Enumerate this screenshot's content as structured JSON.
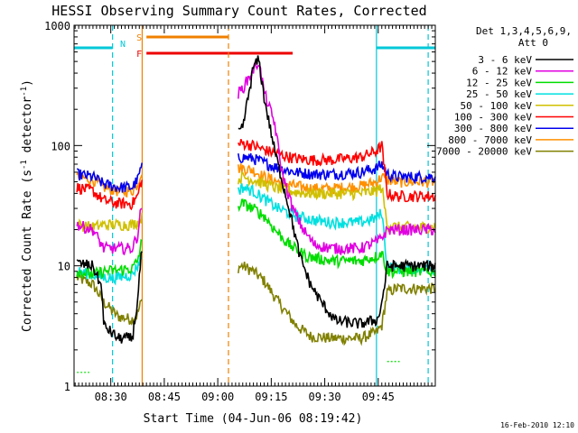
{
  "chart_data": {
    "type": "line",
    "title": "HESSI Observing Summary Count Rates, Corrected",
    "xlabel": "Start Time (04-Jun-06 08:19:42)",
    "ylabel_main": "Corrected Count Rate (s",
    "ylabel_sup1": "-1",
    "ylabel_mid": " detector",
    "ylabel_sup2": "-1",
    "ylabel_end": ")",
    "x_ticks": [
      "08:30",
      "08:45",
      "09:00",
      "09:15",
      "09:30",
      "09:45"
    ],
    "x_tick_minutes": [
      510,
      525,
      540,
      555,
      570,
      585
    ],
    "xlim_minutes": [
      499.7,
      601
    ],
    "y_scale": "log",
    "ylim": [
      1,
      1000
    ],
    "y_ticks": [
      "1",
      "10",
      "100",
      "1000"
    ],
    "y_tick_values": [
      1,
      10,
      100,
      1000
    ],
    "timestamp": "16-Feb-2010 12:10",
    "legend_header": [
      "Det 1,3,4,5,6,9,",
      "Att 0"
    ],
    "flags": {
      "N": {
        "label": "N",
        "color": "#00c8d8"
      },
      "S": {
        "label": "S",
        "color": "#f08000",
        "start": 520,
        "end": 543
      },
      "F": {
        "label": "F",
        "color": "#ee0000",
        "start": 520,
        "end": 561
      }
    },
    "night_segments": [
      {
        "start": 499.7,
        "end": 510.5
      },
      {
        "start": 584.5,
        "end": 601
      }
    ],
    "night_level": 650,
    "vlines": [
      {
        "t": 510.5,
        "color": "#00c8d8",
        "style": "dashed"
      },
      {
        "t": 518.8,
        "color": "#f08000",
        "style": "solid"
      },
      {
        "t": 543.0,
        "color": "#f08000",
        "style": "dashed"
      },
      {
        "t": 584.5,
        "color": "#00c8d8",
        "style": "solid"
      },
      {
        "t": 599.0,
        "color": "#00c8d8",
        "style": "dashed"
      }
    ],
    "gap": [
      518.8,
      546.0
    ],
    "series": [
      {
        "name": "3 - 6 keV",
        "color": "#000000",
        "points": [
          [
            500.5,
            10.5
          ],
          [
            505,
            10
          ],
          [
            507.5,
            6.5
          ],
          [
            508,
            3.2
          ],
          [
            512,
            2.5
          ],
          [
            516,
            2.5
          ],
          [
            517.5,
            5
          ],
          [
            518.5,
            12
          ],
          [
            547,
            140
          ],
          [
            550,
            450
          ],
          [
            551.5,
            520
          ],
          [
            553,
            250
          ],
          [
            556,
            90
          ],
          [
            560,
            30
          ],
          [
            563,
            12
          ],
          [
            566,
            7
          ],
          [
            569,
            5
          ],
          [
            573,
            3.5
          ],
          [
            580,
            3.3
          ],
          [
            585,
            3.6
          ],
          [
            586.5,
            6
          ],
          [
            587.5,
            10
          ],
          [
            590,
            10
          ],
          [
            595,
            10
          ],
          [
            601,
            10
          ]
        ]
      },
      {
        "name": "6 - 12 keV",
        "color": "#e000e0",
        "points": [
          [
            500.5,
            22
          ],
          [
            505,
            20
          ],
          [
            508,
            14
          ],
          [
            512,
            14
          ],
          [
            516,
            14
          ],
          [
            517.5,
            18
          ],
          [
            518.5,
            30
          ],
          [
            547,
            300
          ],
          [
            550,
            430
          ],
          [
            551.5,
            500
          ],
          [
            553,
            280
          ],
          [
            556,
            150
          ],
          [
            558,
            60
          ],
          [
            561,
            30
          ],
          [
            564,
            20
          ],
          [
            567,
            15
          ],
          [
            572,
            14
          ],
          [
            580,
            14
          ],
          [
            585,
            16
          ],
          [
            586.5,
            18
          ],
          [
            587.5,
            20
          ],
          [
            590,
            20
          ],
          [
            595,
            20
          ],
          [
            601,
            20
          ]
        ]
      },
      {
        "name": "12 - 25 keV",
        "color": "#00dd00",
        "points": [
          [
            500.5,
            9
          ],
          [
            505,
            8.5
          ],
          [
            508,
            9
          ],
          [
            512,
            9.2
          ],
          [
            516,
            9.5
          ],
          [
            517.5,
            11
          ],
          [
            518.5,
            15
          ],
          [
            547,
            33
          ],
          [
            550,
            30
          ],
          [
            553,
            26
          ],
          [
            556,
            20
          ],
          [
            560,
            15
          ],
          [
            565,
            12
          ],
          [
            572,
            11
          ],
          [
            580,
            11
          ],
          [
            584.5,
            12
          ],
          [
            586,
            13
          ],
          [
            587.5,
            9
          ],
          [
            590,
            9
          ],
          [
            595,
            9
          ],
          [
            601,
            9
          ]
        ]
      },
      {
        "name": "25 - 50 keV",
        "color": "#00e0e0",
        "points": [
          [
            500.5,
            9
          ],
          [
            505,
            8.5
          ],
          [
            508,
            8
          ],
          [
            512,
            8
          ],
          [
            516,
            8.5
          ],
          [
            517.5,
            10
          ],
          [
            518.5,
            12
          ],
          [
            547,
            45
          ],
          [
            550,
            42
          ],
          [
            553,
            36
          ],
          [
            557,
            30
          ],
          [
            562,
            26
          ],
          [
            567,
            24
          ],
          [
            572,
            23
          ],
          [
            580,
            23
          ],
          [
            584.5,
            25
          ],
          [
            586,
            28
          ],
          [
            587.5,
            10
          ],
          [
            590,
            9.5
          ],
          [
            595,
            9.5
          ],
          [
            601,
            9.5
          ]
        ]
      },
      {
        "name": "50 - 100 keV",
        "color": "#d0c000",
        "points": [
          [
            500.5,
            22
          ],
          [
            505,
            21
          ],
          [
            508,
            22
          ],
          [
            512,
            22
          ],
          [
            516,
            22
          ],
          [
            517.5,
            23
          ],
          [
            518.5,
            25
          ],
          [
            547,
            55
          ],
          [
            550,
            52
          ],
          [
            553,
            48
          ],
          [
            557,
            44
          ],
          [
            562,
            41
          ],
          [
            567,
            40
          ],
          [
            572,
            40
          ],
          [
            580,
            40
          ],
          [
            584.5,
            42
          ],
          [
            586,
            45
          ],
          [
            587.5,
            22
          ],
          [
            590,
            21
          ],
          [
            595,
            21
          ],
          [
            601,
            21
          ]
        ]
      },
      {
        "name": "100 - 300 keV",
        "color": "#ff0000",
        "points": [
          [
            500.5,
            45
          ],
          [
            505,
            42
          ],
          [
            508,
            35
          ],
          [
            512,
            33
          ],
          [
            516,
            33
          ],
          [
            517.5,
            38
          ],
          [
            518.5,
            50
          ],
          [
            547,
            105
          ],
          [
            550,
            100
          ],
          [
            553,
            92
          ],
          [
            557,
            85
          ],
          [
            562,
            78
          ],
          [
            567,
            76
          ],
          [
            572,
            76
          ],
          [
            580,
            80
          ],
          [
            584.5,
            90
          ],
          [
            586,
            100
          ],
          [
            587.5,
            40
          ],
          [
            590,
            38
          ],
          [
            595,
            38
          ],
          [
            601,
            38
          ]
        ]
      },
      {
        "name": "300 - 800 keV",
        "color": "#0000ee",
        "points": [
          [
            500.5,
            58
          ],
          [
            505,
            55
          ],
          [
            508,
            48
          ],
          [
            512,
            45
          ],
          [
            516,
            45
          ],
          [
            517.5,
            52
          ],
          [
            518.5,
            65
          ],
          [
            547,
            80
          ],
          [
            550,
            78
          ],
          [
            553,
            72
          ],
          [
            557,
            65
          ],
          [
            562,
            60
          ],
          [
            567,
            58
          ],
          [
            572,
            58
          ],
          [
            580,
            60
          ],
          [
            584.5,
            65
          ],
          [
            586,
            70
          ],
          [
            587.5,
            58
          ],
          [
            590,
            55
          ],
          [
            595,
            55
          ],
          [
            601,
            55
          ]
        ]
      },
      {
        "name": "800 - 7000 keV",
        "color": "#ff9000",
        "points": [
          [
            500.5,
            55
          ],
          [
            505,
            52
          ],
          [
            508,
            45
          ],
          [
            512,
            42
          ],
          [
            516,
            42
          ],
          [
            517.5,
            48
          ],
          [
            518.5,
            60
          ],
          [
            547,
            65
          ],
          [
            550,
            62
          ],
          [
            553,
            55
          ],
          [
            557,
            50
          ],
          [
            562,
            46
          ],
          [
            567,
            44
          ],
          [
            572,
            44
          ],
          [
            580,
            46
          ],
          [
            584.5,
            50
          ],
          [
            586,
            55
          ],
          [
            587.5,
            52
          ],
          [
            590,
            50
          ],
          [
            595,
            50
          ],
          [
            601,
            50
          ]
        ]
      },
      {
        "name": "7000 - 20000 keV",
        "color": "#808000",
        "points": [
          [
            500.5,
            8
          ],
          [
            505,
            7
          ],
          [
            508,
            5
          ],
          [
            512,
            3.8
          ],
          [
            516,
            3.6
          ],
          [
            517.5,
            4
          ],
          [
            518.5,
            5
          ],
          [
            547,
            10
          ],
          [
            550,
            9
          ],
          [
            553,
            7.5
          ],
          [
            557,
            5
          ],
          [
            562,
            3.2
          ],
          [
            566,
            2.6
          ],
          [
            572,
            2.5
          ],
          [
            580,
            2.5
          ],
          [
            584.5,
            2.8
          ],
          [
            586,
            3.2
          ],
          [
            587.5,
            6
          ],
          [
            590,
            6.5
          ],
          [
            595,
            6.5
          ],
          [
            601,
            6.5
          ]
        ]
      }
    ],
    "pre_green_segment": {
      "points": [
        [
          500.5,
          1.3
        ],
        [
          504,
          1.3
        ]
      ],
      "color": "#00dd00"
    },
    "post_green_segment": {
      "points": [
        [
          587.5,
          1.6
        ],
        [
          591,
          1.6
        ]
      ],
      "color": "#00dd00"
    }
  }
}
